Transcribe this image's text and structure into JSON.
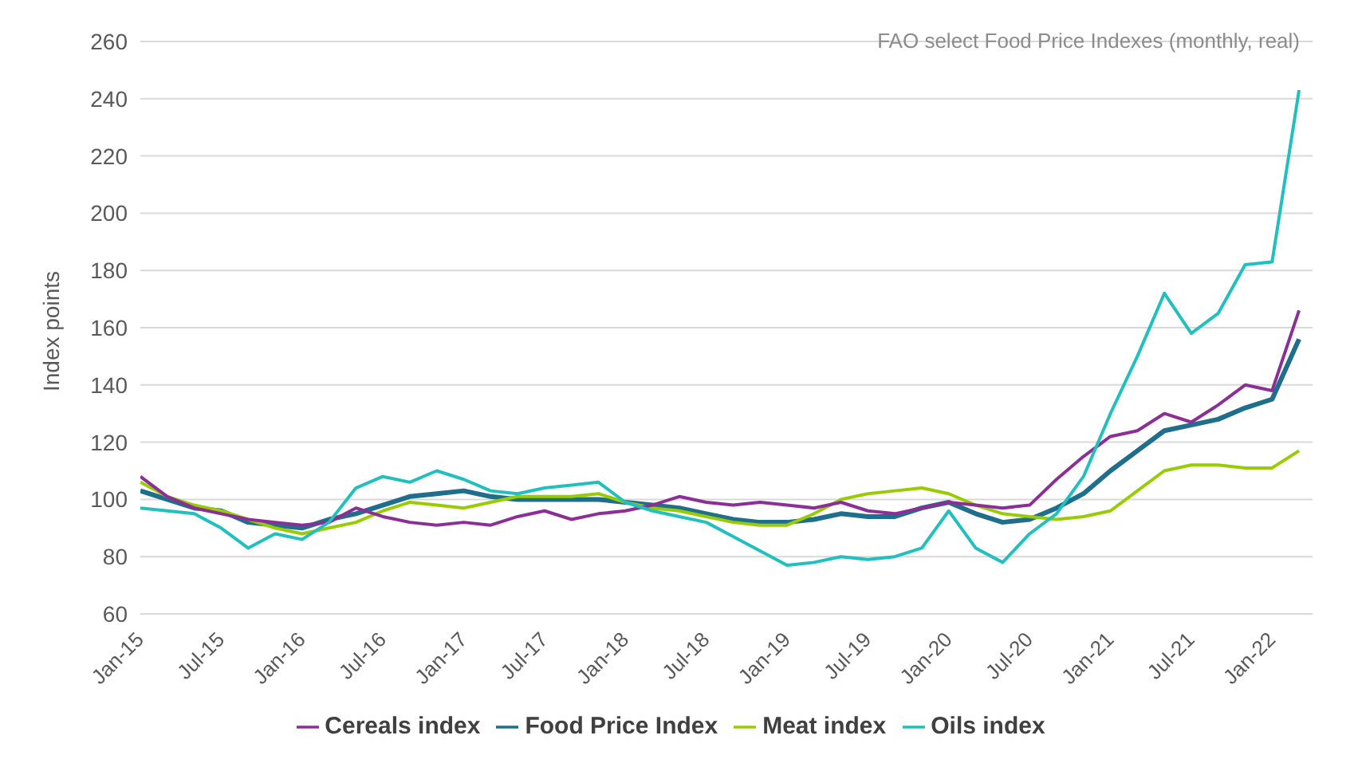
{
  "chart_data": {
    "type": "line",
    "title": "FAO select Food Price Indexes (monthly, real)",
    "ylabel": "Index points",
    "x": [
      "2015-01",
      "2015-03",
      "2015-05",
      "2015-07",
      "2015-09",
      "2015-11",
      "2016-01",
      "2016-03",
      "2016-05",
      "2016-07",
      "2016-09",
      "2016-11",
      "2017-01",
      "2017-03",
      "2017-05",
      "2017-07",
      "2017-09",
      "2017-11",
      "2018-01",
      "2018-03",
      "2018-05",
      "2018-07",
      "2018-09",
      "2018-11",
      "2019-01",
      "2019-03",
      "2019-05",
      "2019-07",
      "2019-09",
      "2019-11",
      "2020-01",
      "2020-03",
      "2020-05",
      "2020-07",
      "2020-09",
      "2020-11",
      "2021-01",
      "2021-03",
      "2021-05",
      "2021-07",
      "2021-09",
      "2021-11",
      "2022-01",
      "2022-03"
    ],
    "series": [
      {
        "name": "Food Price Index",
        "color": "#1f6e8c",
        "values": [
          103,
          100,
          97,
          96,
          92,
          91,
          90,
          93,
          95,
          98,
          101,
          102,
          103,
          101,
          100,
          100,
          100,
          100,
          99,
          98,
          97,
          95,
          93,
          92,
          92,
          93,
          95,
          94,
          94,
          97,
          99,
          95,
          92,
          93,
          97,
          102,
          110,
          117,
          124,
          126,
          128,
          132,
          135,
          156
        ]
      },
      {
        "name": "Meat index",
        "color": "#99cc00",
        "values": [
          106,
          101,
          98,
          96,
          93,
          90,
          88,
          90,
          92,
          96,
          99,
          98,
          97,
          99,
          101,
          101,
          101,
          102,
          99,
          97,
          96,
          94,
          92,
          91,
          91,
          95,
          100,
          102,
          103,
          104,
          102,
          98,
          95,
          94,
          93,
          94,
          96,
          103,
          110,
          112,
          112,
          111,
          111,
          117
        ]
      },
      {
        "name": "Cereals index",
        "color": "#8b2f97",
        "values": [
          108,
          101,
          97,
          95,
          93,
          92,
          91,
          92,
          97,
          94,
          92,
          91,
          92,
          91,
          94,
          96,
          93,
          95,
          96,
          98,
          101,
          99,
          98,
          99,
          98,
          97,
          99,
          96,
          95,
          97,
          99,
          98,
          97,
          98,
          107,
          115,
          122,
          124,
          130,
          127,
          133,
          140,
          138,
          166
        ]
      },
      {
        "name": "Oils index",
        "color": "#22bfbf",
        "values": [
          97,
          96,
          95,
          90,
          83,
          88,
          86,
          92,
          104,
          108,
          106,
          110,
          107,
          103,
          102,
          104,
          105,
          106,
          99,
          96,
          94,
          92,
          87,
          82,
          77,
          78,
          80,
          79,
          80,
          83,
          96,
          83,
          78,
          88,
          95,
          108,
          130,
          150,
          172,
          158,
          165,
          182,
          183,
          243
        ]
      }
    ],
    "xlim": [
      "2015-01",
      "2022-04"
    ],
    "xticks": [
      {
        "value": "2015-01",
        "label": "Jan-15"
      },
      {
        "value": "2015-07",
        "label": "Jul-15"
      },
      {
        "value": "2016-01",
        "label": "Jan-16"
      },
      {
        "value": "2016-07",
        "label": "Jul-16"
      },
      {
        "value": "2017-01",
        "label": "Jan-17"
      },
      {
        "value": "2017-07",
        "label": "Jul-17"
      },
      {
        "value": "2018-01",
        "label": "Jan-18"
      },
      {
        "value": "2018-07",
        "label": "Jul-18"
      },
      {
        "value": "2019-01",
        "label": "Jan-19"
      },
      {
        "value": "2019-07",
        "label": "Jul-19"
      },
      {
        "value": "2020-01",
        "label": "Jan-20"
      },
      {
        "value": "2020-07",
        "label": "Jul-20"
      },
      {
        "value": "2021-01",
        "label": "Jan-21"
      },
      {
        "value": "2021-07",
        "label": "Jul-21"
      },
      {
        "value": "2022-01",
        "label": "Jan-22"
      }
    ],
    "ylim": [
      60,
      260
    ],
    "yticks": [
      60,
      80,
      100,
      120,
      140,
      160,
      180,
      200,
      220,
      240,
      260
    ],
    "grid": "y",
    "legend": "bottom",
    "marker": "none",
    "line_style": "solid"
  }
}
